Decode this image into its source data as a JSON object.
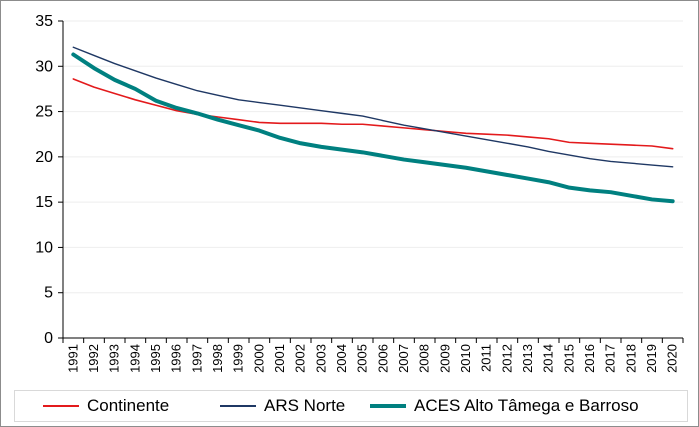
{
  "chart_data": {
    "type": "line",
    "title": "",
    "xlabel": "",
    "ylabel": "",
    "ylim": [
      0,
      35
    ],
    "yticks": [
      0,
      5,
      10,
      15,
      20,
      25,
      30,
      35
    ],
    "grid": true,
    "legend_position": "bottom",
    "x": [
      "1991",
      "1992",
      "1993",
      "1994",
      "1995",
      "1996",
      "1997",
      "1998",
      "1999",
      "2000",
      "2001",
      "2002",
      "2003",
      "2004",
      "2005",
      "2006",
      "2007",
      "2008",
      "2009",
      "2010",
      "2011",
      "2012",
      "2013",
      "2014",
      "2015",
      "2016",
      "2017",
      "2018",
      "2019",
      "2020"
    ],
    "series": [
      {
        "name": "Continente",
        "color": "#e31a1c",
        "values": [
          28.6,
          27.7,
          27.0,
          26.3,
          25.7,
          25.1,
          24.7,
          24.4,
          24.1,
          23.8,
          23.7,
          23.7,
          23.7,
          23.6,
          23.6,
          23.4,
          23.2,
          23.0,
          22.8,
          22.6,
          22.5,
          22.4,
          22.2,
          22.0,
          21.6,
          21.5,
          21.4,
          21.3,
          21.2,
          20.9
        ]
      },
      {
        "name": "ARS Norte",
        "color": "#1f3864",
        "values": [
          32.1,
          31.2,
          30.3,
          29.5,
          28.7,
          28.0,
          27.3,
          26.8,
          26.3,
          26.0,
          25.7,
          25.4,
          25.1,
          24.8,
          24.5,
          24.0,
          23.5,
          23.1,
          22.7,
          22.3,
          21.9,
          21.5,
          21.1,
          20.6,
          20.2,
          19.8,
          19.5,
          19.3,
          19.1,
          18.9
        ]
      },
      {
        "name": "ACES Alto Tâmega e Barroso",
        "color": "#008080",
        "values": [
          31.3,
          29.8,
          28.5,
          27.5,
          26.2,
          25.4,
          24.8,
          24.1,
          23.5,
          22.9,
          22.1,
          21.5,
          21.1,
          20.8,
          20.5,
          20.1,
          19.7,
          19.4,
          19.1,
          18.8,
          18.4,
          18.0,
          17.6,
          17.2,
          16.6,
          16.3,
          16.1,
          15.7,
          15.3,
          15.1
        ]
      }
    ]
  }
}
